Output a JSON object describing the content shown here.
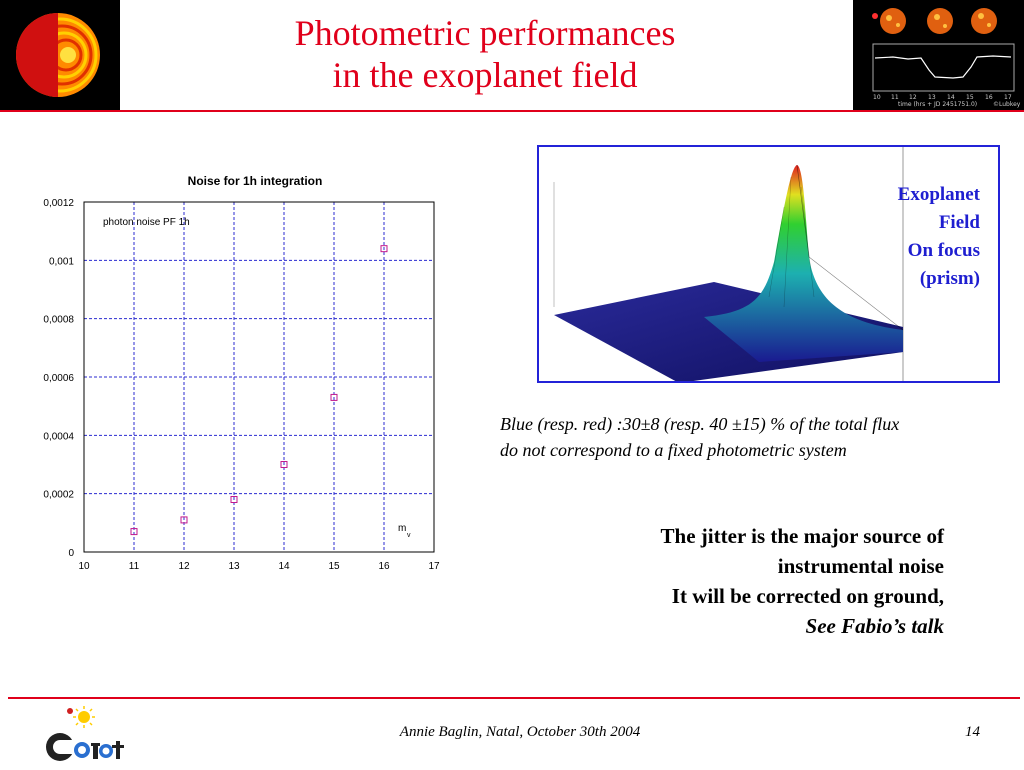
{
  "slide": {
    "title_line1": "Photometric performances",
    "title_line2": "in the exoplanet field",
    "surface_label": [
      "Exoplanet",
      "Field",
      "On focus",
      "(prism)"
    ],
    "caption_line1": "Blue (resp. red) :30±8 (resp. 40 ±15) % of the total flux",
    "caption_line2": "do not correspond to a fixed photometric system",
    "jitter_line1": "The jitter is the major source of",
    "jitter_line2": "instrumental noise",
    "jitter_line3": "It will be corrected on ground,",
    "jitter_line4": "See Fabio’s talk",
    "footer_author": "Annie Baglin, Natal, October 30th 2004",
    "footer_page": "14",
    "light_curve_time_ticks": [
      "10",
      "11",
      "12",
      "13",
      "14",
      "15",
      "16",
      "17"
    ],
    "light_curve_axis_label": "time (hrs + JD 2451751.0)",
    "light_curve_credit": "©Lubkey",
    "accent_color": "#e0001b",
    "label_color": "#1e1ed0"
  },
  "chart_data": {
    "type": "scatter",
    "title": "Noise for 1h integration",
    "series": [
      {
        "name": "photon noise PF 1h",
        "x": [
          11,
          12,
          13,
          14,
          15,
          16
        ],
        "y": [
          7e-05,
          0.00011,
          0.00018,
          0.0003,
          0.00053,
          0.00104
        ]
      }
    ],
    "xlabel": "m",
    "xlabel_sub": "v",
    "xlim": [
      10,
      17
    ],
    "ylim": [
      0,
      0.0012
    ],
    "xticks": [
      "10",
      "11",
      "12",
      "13",
      "14",
      "15",
      "16",
      "17"
    ],
    "yticks": [
      "0",
      "0,0002",
      "0,0004",
      "0,0006",
      "0,0008",
      "0,001",
      "0,0012"
    ],
    "grid": true,
    "marker_color": "#c2188c"
  }
}
